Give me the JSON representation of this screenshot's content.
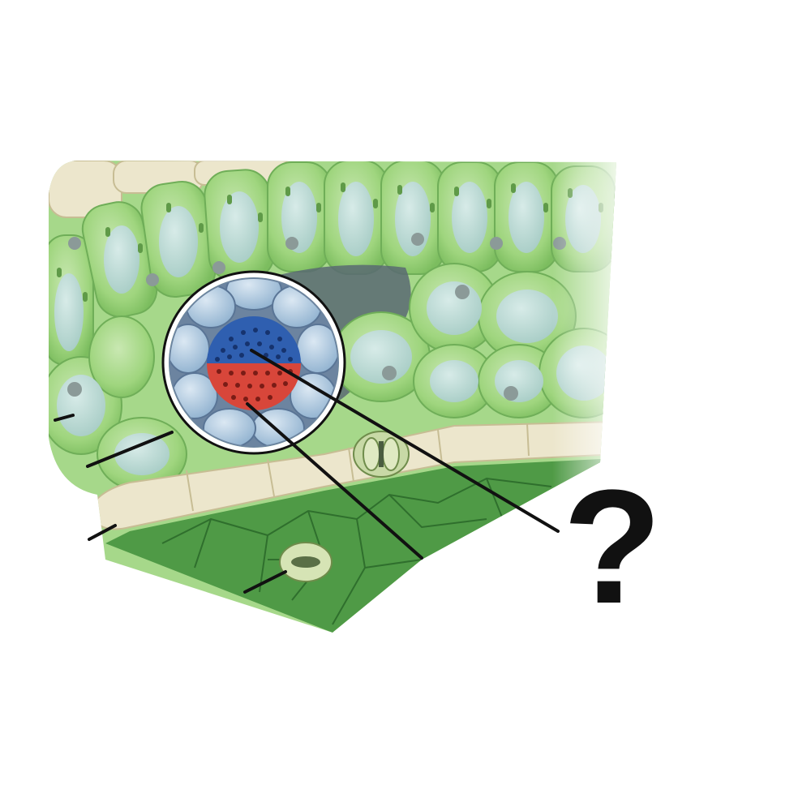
{
  "diagram": {
    "unknown_label": "?",
    "colors": {
      "palisade_cell": "#9fd57e",
      "palisade_cell_edge": "#6fae58",
      "cell_interior": "#b9d9cf",
      "chloroplast": "#5f9a48",
      "nucleus": "#8b9a98",
      "epidermis_cell": "#ece6cc",
      "epidermis_edge": "#c7bd94",
      "lower_surface": "#4f9a46",
      "lower_surface_lines": "#2f6f2d",
      "air_space": "#596a72",
      "bundle_sheath": "#a9c6dd",
      "xylem": "#2f5fb0",
      "phloem": "#d8463a",
      "leader_line": "#111111"
    },
    "icons": {
      "stoma_upper": "stoma-icon",
      "stoma_lower": "stoma-icon"
    }
  }
}
